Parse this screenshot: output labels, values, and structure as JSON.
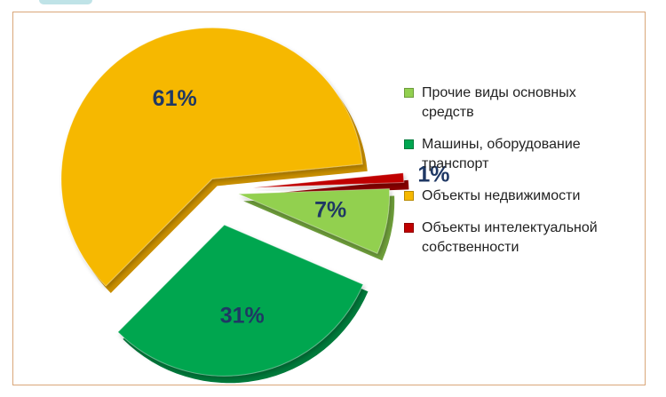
{
  "chart_data": {
    "type": "pie",
    "style": "3d-exploded",
    "title": "",
    "categories": [
      "Прочие виды основных средств",
      "Машины, оборудование транспорт",
      "Объекты недвижимости",
      "Объекты интелектуальной собственности"
    ],
    "values": [
      7,
      31,
      61,
      1
    ],
    "value_labels": [
      "7%",
      "31%",
      "61%",
      "1%"
    ],
    "legend_items": [
      {
        "line1": "Прочие виды основных",
        "line2": "средств"
      },
      {
        "line1": "Машины, оборудование",
        "line2": "транспорт"
      },
      {
        "line1": "Объекты недвижимости",
        "line2": ""
      },
      {
        "line1": "Объекты интелектуальной",
        "line2": "собственности"
      }
    ],
    "colors": [
      "#92d050",
      "#00a650",
      "#f6b800",
      "#c00000"
    ],
    "side_colors": [
      "#6f9f3b",
      "#007a3b",
      "#c98f00",
      "#8a0000"
    ],
    "legend_placement": "right"
  }
}
